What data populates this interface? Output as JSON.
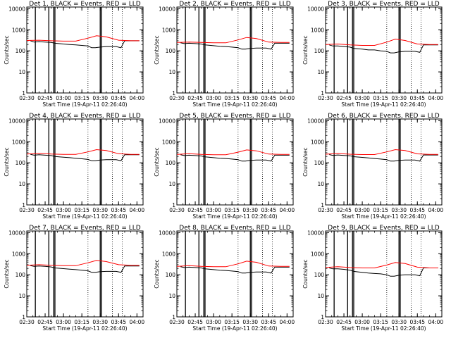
{
  "chart_data": {
    "type": "line",
    "layout": "3x3 grid of line plots",
    "shared": {
      "xlabel": "Start Time (19-Apr-11 02:26:40)",
      "ylabel": "Counts/sec",
      "y_scale": "log",
      "ylim": [
        1,
        12000
      ],
      "y_ticks": [
        "1",
        "10",
        "100",
        "1000",
        "10000"
      ],
      "xlim": [
        "02:30",
        "04:05"
      ],
      "x_ticks": [
        "02:30",
        "02:45",
        "03:00",
        "03:15",
        "03:30",
        "03:45",
        "04:00"
      ],
      "series_colors": {
        "events": "#000000",
        "lld": "#ff0000"
      },
      "solid_vertical_lines": [
        "02:37",
        "02:48",
        "02:52",
        "02:53",
        "03:30",
        "03:31"
      ],
      "dotted_vertical_lines": [
        "03:20",
        "03:40",
        "03:48"
      ]
    },
    "panels": [
      {
        "title": "Det 1, BLACK = Events, RED = LLD",
        "series": [
          {
            "name": "Events",
            "x": [
              "02:33",
              "02:36",
              "02:40",
              "02:45",
              "02:50",
              "02:53",
              "03:00",
              "03:05",
              "03:10",
              "03:15",
              "03:20",
              "03:23",
              "03:26",
              "03:30",
              "03:35",
              "03:40",
              "03:43",
              "03:47",
              "03:50",
              "04:02"
            ],
            "y": [
              300,
              260,
              270,
              260,
              250,
              230,
              210,
              200,
              190,
              180,
              170,
              140,
              140,
              150,
              160,
              160,
              160,
              140,
              300,
              300
            ]
          },
          {
            "name": "LLD",
            "x": [
              "02:30",
              "02:40",
              "02:50",
              "03:00",
              "03:10",
              "03:20",
              "03:27",
              "03:35",
              "03:45",
              "03:55",
              "04:02"
            ],
            "y": [
              310,
              320,
              300,
              290,
              290,
              400,
              520,
              460,
              320,
              300,
              300
            ]
          }
        ]
      },
      {
        "title": "Det 2, BLACK = Events, RED = LLD",
        "series": [
          {
            "name": "Events",
            "x": [
              "02:33",
              "02:36",
              "02:40",
              "02:45",
              "02:50",
              "02:53",
              "03:00",
              "03:05",
              "03:10",
              "03:15",
              "03:20",
              "03:23",
              "03:26",
              "03:30",
              "03:35",
              "03:40",
              "03:43",
              "03:47",
              "03:50",
              "04:02"
            ],
            "y": [
              240,
              220,
              230,
              220,
              210,
              190,
              175,
              165,
              160,
              150,
              140,
              120,
              120,
              130,
              135,
              135,
              135,
              120,
              230,
              230
            ]
          },
          {
            "name": "LLD",
            "x": [
              "02:30",
              "02:40",
              "02:50",
              "03:00",
              "03:10",
              "03:20",
              "03:27",
              "03:35",
              "03:45",
              "03:55",
              "04:02"
            ],
            "y": [
              250,
              260,
              250,
              240,
              240,
              330,
              430,
              380,
              260,
              250,
              250
            ]
          }
        ]
      },
      {
        "title": "Det 3, BLACK = Events, RED = LLD",
        "series": [
          {
            "name": "Events",
            "x": [
              "02:33",
              "02:36",
              "02:40",
              "02:45",
              "02:50",
              "02:53",
              "03:00",
              "03:05",
              "03:10",
              "03:15",
              "03:20",
              "03:23",
              "03:26",
              "03:30",
              "03:35",
              "03:40",
              "03:43",
              "03:47",
              "03:50",
              "04:02"
            ],
            "y": [
              190,
              170,
              170,
              160,
              150,
              130,
              120,
              110,
              110,
              100,
              95,
              80,
              80,
              90,
              95,
              95,
              95,
              85,
              190,
              190
            ]
          },
          {
            "name": "LLD",
            "x": [
              "02:30",
              "02:40",
              "02:50",
              "03:00",
              "03:10",
              "03:20",
              "03:27",
              "03:35",
              "03:45",
              "03:55",
              "04:02"
            ],
            "y": [
              200,
              210,
              190,
              180,
              180,
              260,
              360,
              310,
              210,
              200,
              200
            ]
          }
        ]
      },
      {
        "title": "Det 4, BLACK = Events, RED = LLD",
        "series": [
          {
            "name": "Events",
            "x": [
              "02:33",
              "02:36",
              "02:40",
              "02:45",
              "02:50",
              "02:53",
              "03:00",
              "03:05",
              "03:10",
              "03:15",
              "03:20",
              "03:23",
              "03:26",
              "03:30",
              "03:35",
              "03:40",
              "03:43",
              "03:47",
              "03:50",
              "04:02"
            ],
            "y": [
              250,
              230,
              240,
              230,
              220,
              200,
              185,
              175,
              165,
              155,
              145,
              125,
              125,
              135,
              140,
              140,
              140,
              125,
              240,
              240
            ]
          },
          {
            "name": "LLD",
            "x": [
              "02:30",
              "02:40",
              "02:50",
              "03:00",
              "03:10",
              "03:20",
              "03:27",
              "03:35",
              "03:45",
              "03:55",
              "04:02"
            ],
            "y": [
              260,
              280,
              260,
              250,
              250,
              330,
              420,
              380,
              270,
              250,
              250
            ]
          }
        ]
      },
      {
        "title": "Det 5, BLACK = Events, RED = LLD",
        "series": [
          {
            "name": "Events",
            "x": [
              "02:33",
              "02:36",
              "02:40",
              "02:45",
              "02:50",
              "02:53",
              "03:00",
              "03:05",
              "03:10",
              "03:15",
              "03:20",
              "03:23",
              "03:26",
              "03:30",
              "03:35",
              "03:40",
              "03:43",
              "03:47",
              "03:50",
              "04:02"
            ],
            "y": [
              240,
              220,
              230,
              220,
              210,
              190,
              175,
              165,
              160,
              150,
              140,
              120,
              120,
              130,
              135,
              135,
              135,
              120,
              230,
              230
            ]
          },
          {
            "name": "LLD",
            "x": [
              "02:30",
              "02:40",
              "02:50",
              "03:00",
              "03:10",
              "03:20",
              "03:27",
              "03:35",
              "03:45",
              "03:55",
              "04:02"
            ],
            "y": [
              250,
              270,
              250,
              240,
              240,
              320,
              410,
              370,
              260,
              250,
              250
            ]
          }
        ]
      },
      {
        "title": "Det 6, BLACK = Events, RED = LLD",
        "series": [
          {
            "name": "Events",
            "x": [
              "02:33",
              "02:36",
              "02:40",
              "02:45",
              "02:50",
              "02:53",
              "03:00",
              "03:05",
              "03:10",
              "03:15",
              "03:20",
              "03:23",
              "03:26",
              "03:30",
              "03:35",
              "03:40",
              "03:43",
              "03:47",
              "03:50",
              "04:02"
            ],
            "y": [
              245,
              225,
              235,
              225,
              215,
              195,
              180,
              170,
              160,
              150,
              140,
              120,
              120,
              130,
              135,
              135,
              135,
              120,
              235,
              235
            ]
          },
          {
            "name": "LLD",
            "x": [
              "02:30",
              "02:40",
              "02:50",
              "03:00",
              "03:10",
              "03:20",
              "03:27",
              "03:35",
              "03:45",
              "03:55",
              "04:02"
            ],
            "y": [
              255,
              275,
              255,
              245,
              245,
              330,
              420,
              380,
              265,
              250,
              250
            ]
          }
        ]
      },
      {
        "title": "Det 7, BLACK = Events, RED = LLD",
        "series": [
          {
            "name": "Events",
            "x": [
              "02:33",
              "02:36",
              "02:40",
              "02:45",
              "02:50",
              "02:53",
              "03:00",
              "03:05",
              "03:10",
              "03:15",
              "03:20",
              "03:23",
              "03:26",
              "03:30",
              "03:35",
              "03:40",
              "03:43",
              "03:47",
              "03:50",
              "04:02"
            ],
            "y": [
              270,
              250,
              260,
              250,
              235,
              210,
              195,
              185,
              175,
              165,
              155,
              130,
              130,
              140,
              145,
              145,
              145,
              130,
              260,
              260
            ]
          },
          {
            "name": "LLD",
            "x": [
              "02:30",
              "02:40",
              "02:50",
              "03:00",
              "03:10",
              "03:20",
              "03:27",
              "03:35",
              "03:45",
              "03:55",
              "04:02"
            ],
            "y": [
              280,
              300,
              280,
              270,
              270,
              370,
              480,
              420,
              300,
              280,
              280
            ]
          }
        ]
      },
      {
        "title": "Det 8, BLACK = Events, RED = LLD",
        "series": [
          {
            "name": "Events",
            "x": [
              "02:33",
              "02:36",
              "02:40",
              "02:45",
              "02:50",
              "02:53",
              "03:00",
              "03:05",
              "03:10",
              "03:15",
              "03:20",
              "03:23",
              "03:26",
              "03:30",
              "03:35",
              "03:40",
              "03:43",
              "03:47",
              "03:50",
              "04:02"
            ],
            "y": [
              240,
              220,
              230,
              220,
              210,
              190,
              175,
              165,
              160,
              150,
              140,
              120,
              120,
              130,
              135,
              135,
              135,
              120,
              230,
              230
            ]
          },
          {
            "name": "LLD",
            "x": [
              "02:30",
              "02:40",
              "02:50",
              "03:00",
              "03:10",
              "03:20",
              "03:27",
              "03:35",
              "03:45",
              "03:55",
              "04:02"
            ],
            "y": [
              250,
              270,
              250,
              240,
              240,
              330,
              440,
              390,
              260,
              250,
              250
            ]
          }
        ]
      },
      {
        "title": "Det 9, BLACK = Events, RED = LLD",
        "series": [
          {
            "name": "Events",
            "x": [
              "02:33",
              "02:36",
              "02:40",
              "02:45",
              "02:50",
              "02:53",
              "03:00",
              "03:05",
              "03:10",
              "03:15",
              "03:20",
              "03:23",
              "03:26",
              "03:30",
              "03:35",
              "03:40",
              "03:43",
              "03:47",
              "03:50",
              "04:02"
            ],
            "y": [
              210,
              190,
              190,
              180,
              165,
              145,
              130,
              120,
              115,
              110,
              100,
              85,
              85,
              95,
              100,
              100,
              100,
              90,
              210,
              210
            ]
          },
          {
            "name": "LLD",
            "x": [
              "02:30",
              "02:40",
              "02:50",
              "03:00",
              "03:10",
              "03:20",
              "03:27",
              "03:35",
              "03:45",
              "03:55",
              "04:02"
            ],
            "y": [
              220,
              240,
              220,
              210,
              210,
              290,
              380,
              340,
              230,
              210,
              210
            ]
          }
        ]
      }
    ]
  }
}
